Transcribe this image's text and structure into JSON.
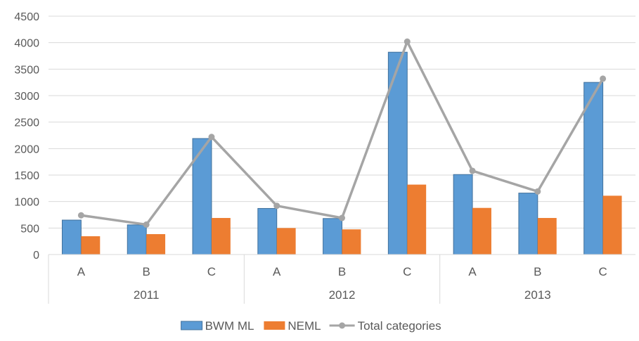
{
  "chart_data": {
    "type": "bar",
    "title": "",
    "xlabel": "",
    "ylabel": "",
    "ylim": [
      0,
      4500
    ],
    "yticks": [
      0,
      500,
      1000,
      1500,
      2000,
      2500,
      3000,
      3500,
      4000,
      4500
    ],
    "grid": true,
    "legend_position": "bottom",
    "groups": [
      {
        "label": "2011",
        "categories": [
          "A",
          "B",
          "C"
        ]
      },
      {
        "label": "2012",
        "categories": [
          "A",
          "B",
          "C"
        ]
      },
      {
        "label": "2013",
        "categories": [
          "A",
          "B",
          "C"
        ]
      }
    ],
    "series": [
      {
        "name": "BWM ML",
        "type": "bar",
        "color": "#5B9BD5",
        "values": [
          650,
          560,
          2190,
          870,
          680,
          3820,
          1510,
          1160,
          3250
        ]
      },
      {
        "name": "NEML",
        "type": "bar",
        "color": "#ED7D31",
        "values": [
          345,
          385,
          690,
          500,
          475,
          1320,
          880,
          690,
          1110
        ]
      },
      {
        "name": "Total categories",
        "type": "line",
        "color": "#A5A5A5",
        "values": [
          740,
          565,
          2220,
          920,
          690,
          4020,
          1580,
          1190,
          3320
        ]
      }
    ]
  }
}
